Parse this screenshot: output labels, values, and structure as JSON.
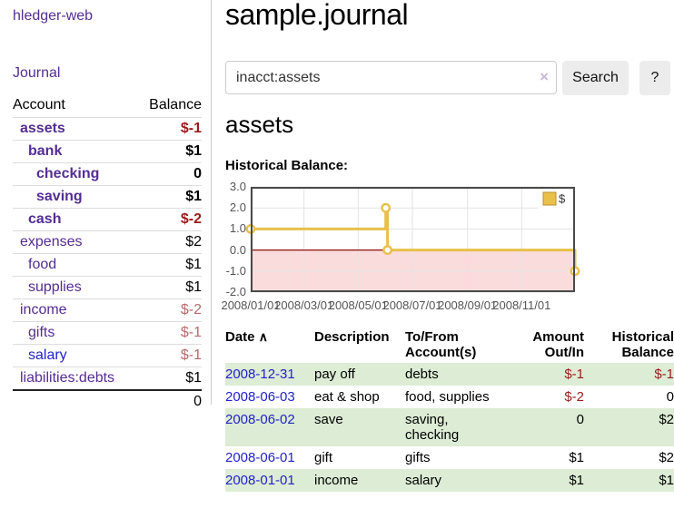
{
  "sidebar": {
    "brand": "hledger-web",
    "journal_link": "Journal",
    "accounts_table": {
      "account_header": "Account",
      "balance_header": "Balance",
      "rows": [
        {
          "name": "assets",
          "balance": "$-1",
          "indent": 1,
          "bold": true,
          "balance_class": "neg-strong",
          "link": "purple"
        },
        {
          "name": "bank",
          "balance": "$1",
          "indent": 2,
          "bold": true,
          "balance_class": "",
          "link": "purple"
        },
        {
          "name": "checking",
          "balance": "0",
          "indent": 3,
          "bold": true,
          "balance_class": "",
          "link": "purple"
        },
        {
          "name": "saving",
          "balance": "$1",
          "indent": 3,
          "bold": true,
          "balance_class": "",
          "link": "purple"
        },
        {
          "name": "cash",
          "balance": "$-2",
          "indent": 2,
          "bold": true,
          "balance_class": "neg-strong",
          "link": "purple"
        },
        {
          "name": "expenses",
          "balance": "$2",
          "indent": 1,
          "bold": false,
          "balance_class": "",
          "link": "purple"
        },
        {
          "name": "food",
          "balance": "$1",
          "indent": 2,
          "bold": false,
          "balance_class": "",
          "link": "purple"
        },
        {
          "name": "supplies",
          "balance": "$1",
          "indent": 2,
          "bold": false,
          "balance_class": "",
          "link": "purple"
        },
        {
          "name": "income",
          "balance": "$-2",
          "indent": 1,
          "bold": false,
          "balance_class": "neg-soft",
          "link": "purple"
        },
        {
          "name": "gifts",
          "balance": "$-1",
          "indent": 2,
          "bold": false,
          "balance_class": "neg-soft",
          "link": "purple"
        },
        {
          "name": "salary",
          "balance": "$-1",
          "indent": 2,
          "bold": false,
          "balance_class": "neg-soft",
          "link": "blue"
        },
        {
          "name": "liabilities:debts",
          "balance": "$1",
          "indent": 1,
          "bold": false,
          "balance_class": "",
          "link": "purple"
        }
      ],
      "total": "0"
    }
  },
  "main": {
    "title": "sample.journal",
    "search": {
      "value": "inacct:assets",
      "clear_icon": "×",
      "button_label": "Search",
      "help_label": "?"
    },
    "account_heading": "assets",
    "chart_label": "Historical Balance:"
  },
  "chart_data": {
    "type": "line",
    "title": "Historical Balance",
    "x_range": [
      "2008-01-01",
      "2008-12-31"
    ],
    "ylim": [
      -2,
      3
    ],
    "yticks": [
      "3.0",
      "2.0",
      "1.0",
      "0.0",
      "-1.0",
      "-2.0"
    ],
    "ytick_values": [
      3,
      2,
      1,
      0,
      -1,
      -2
    ],
    "xticks": [
      "2008/01/01",
      "2008/03/01",
      "2008/05/01",
      "2008/07/01",
      "2008/09/01",
      "2008/11/01"
    ],
    "grid": true,
    "legend_position": "top-right",
    "legend": [
      {
        "label": "$",
        "color": "#e8c04a"
      }
    ],
    "series": [
      {
        "name": "$",
        "step": true,
        "points": [
          [
            "2008-01-01",
            1
          ],
          [
            "2008-06-01",
            2
          ],
          [
            "2008-06-03",
            0
          ],
          [
            "2008-12-31",
            -1
          ]
        ]
      }
    ],
    "colors": {
      "line": "#e8c04a",
      "marker_fill": "#ffffff",
      "legend_square_border": "#b9902c",
      "negative_region": "#fbdcdc",
      "zero_line": "#8f0d0d",
      "grid": "#e3e3e3",
      "border": "#4a4a4a",
      "axis_text": "#555555"
    }
  },
  "register": {
    "headers": {
      "date": "Date",
      "sort_icon": "∧",
      "description": "Description",
      "accounts": "To/From Account(s)",
      "amount": "Amount Out/In",
      "balance": "Historical Balance"
    },
    "rows": [
      {
        "date": "2008-12-31",
        "description": "pay off",
        "accounts": "debts",
        "amount": "$-1",
        "balance": "$-1"
      },
      {
        "date": "2008-06-03",
        "description": "eat & shop",
        "accounts": "food, supplies",
        "amount": "$-2",
        "balance": "0"
      },
      {
        "date": "2008-06-02",
        "description": "save",
        "accounts": "saving, checking",
        "amount": "0",
        "balance": "$2"
      },
      {
        "date": "2008-06-01",
        "description": "gift",
        "accounts": "gifts",
        "amount": "$1",
        "balance": "$2"
      },
      {
        "date": "2008-01-01",
        "description": "income",
        "accounts": "salary",
        "amount": "$1",
        "balance": "$1"
      }
    ]
  },
  "colors": {
    "purple_link": "#552d93",
    "blue_link": "#2222cc",
    "negative_strong": "#9c1b1b",
    "negative_soft": "#b56c6c",
    "row_stripe_green": "#ddecd5"
  }
}
